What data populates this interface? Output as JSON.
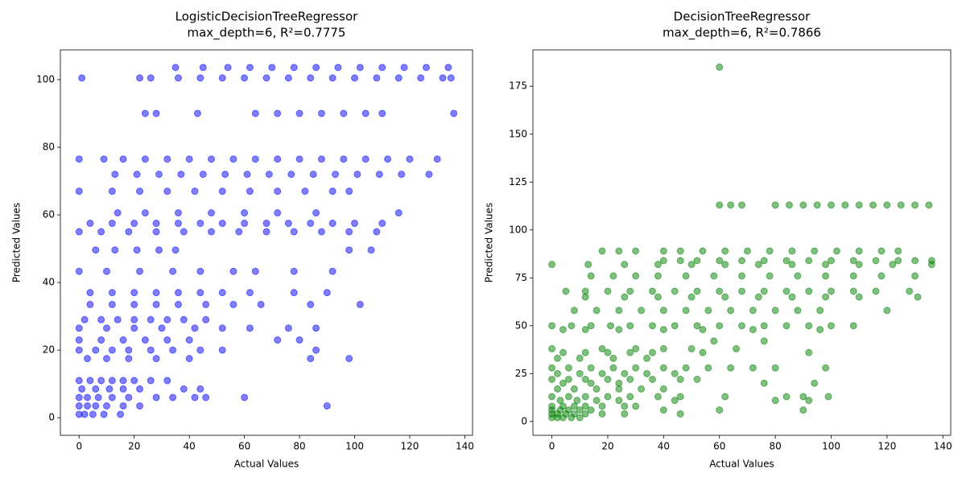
{
  "chart_data": [
    {
      "type": "scatter",
      "title": "LogisticDecisionTreeRegressor",
      "subtitle": "max_depth=6, R²=0.7775",
      "xlabel": "Actual Values",
      "ylabel": "Predicted Values",
      "color": "#0000ff",
      "alpha": 0.5,
      "xlim": [
        -6.8,
        142.8
      ],
      "ylim": [
        -5.2,
        108.8
      ],
      "xticks": [
        0,
        20,
        40,
        60,
        80,
        100,
        120,
        140
      ],
      "yticks": [
        0,
        20,
        40,
        60,
        80,
        100
      ],
      "x": [
        1,
        22,
        26,
        36,
        44,
        52,
        60,
        68,
        76,
        84,
        92,
        100,
        108,
        116,
        124,
        132,
        135,
        35,
        45,
        54,
        62,
        70,
        78,
        86,
        94,
        102,
        110,
        118,
        126,
        134,
        24,
        28,
        43,
        64,
        72,
        80,
        88,
        96,
        104,
        110,
        136,
        0,
        9,
        16,
        24,
        32,
        40,
        48,
        56,
        64,
        72,
        80,
        88,
        96,
        104,
        112,
        120,
        130,
        13,
        21,
        29,
        37,
        45,
        53,
        61,
        69,
        77,
        85,
        93,
        101,
        109,
        117,
        127,
        0,
        12,
        22,
        32,
        42,
        52,
        62,
        72,
        82,
        92,
        98,
        14,
        24,
        36,
        48,
        60,
        72,
        86,
        116,
        4,
        12,
        20,
        28,
        36,
        44,
        52,
        60,
        68,
        76,
        84,
        92,
        100,
        110,
        0,
        8,
        18,
        28,
        38,
        48,
        58,
        68,
        78,
        88,
        98,
        108,
        6,
        13,
        21,
        29,
        35,
        98,
        106,
        0,
        10,
        22,
        34,
        44,
        56,
        64,
        78,
        92,
        4,
        12,
        20,
        28,
        36,
        44,
        52,
        62,
        78,
        90,
        4,
        12,
        20,
        28,
        36,
        46,
        56,
        66,
        84,
        102,
        2,
        8,
        14,
        20,
        26,
        32,
        38,
        46,
        0,
        10,
        20,
        30,
        42,
        52,
        62,
        76,
        86,
        0,
        8,
        16,
        24,
        32,
        40,
        72,
        80,
        0,
        6,
        12,
        18,
        26,
        34,
        44,
        52,
        86,
        3,
        10,
        18,
        28,
        40,
        84,
        98,
        0,
        4,
        8,
        12,
        16,
        20,
        26,
        32,
        1,
        6,
        11,
        16,
        22,
        38,
        44,
        0,
        3,
        7,
        12,
        18,
        28,
        34,
        42,
        46,
        60,
        0,
        3,
        6,
        10,
        16,
        22,
        90,
        0,
        2,
        5,
        9,
        15
      ],
      "y": [
        100.5,
        100.5,
        100.5,
        100.5,
        100.5,
        100.5,
        100.5,
        100.5,
        100.5,
        100.5,
        100.5,
        100.5,
        100.5,
        100.5,
        100.5,
        100.5,
        100.5,
        103.6,
        103.6,
        103.6,
        103.6,
        103.6,
        103.6,
        103.6,
        103.6,
        103.6,
        103.6,
        103.6,
        103.6,
        103.6,
        90,
        90,
        90,
        90,
        90,
        90,
        90,
        90,
        90,
        90,
        90,
        76.5,
        76.5,
        76.5,
        76.5,
        76.5,
        76.5,
        76.5,
        76.5,
        76.5,
        76.5,
        76.5,
        76.5,
        76.5,
        76.5,
        76.5,
        76.5,
        76.5,
        72,
        72,
        72,
        72,
        72,
        72,
        72,
        72,
        72,
        72,
        72,
        72,
        72,
        72,
        72,
        67,
        67,
        67,
        67,
        67,
        67,
        67,
        67,
        67,
        67,
        67,
        60.6,
        60.6,
        60.6,
        60.6,
        60.6,
        60.6,
        60.6,
        60.6,
        57.5,
        57.5,
        57.5,
        57.5,
        57.5,
        57.5,
        57.5,
        57.5,
        57.5,
        57.5,
        57.5,
        57.5,
        57.5,
        57.5,
        55,
        55,
        55,
        55,
        55,
        55,
        55,
        55,
        55,
        55,
        55,
        55,
        49.6,
        49.6,
        49.6,
        49.6,
        49.6,
        49.6,
        49.6,
        43.3,
        43.3,
        43.3,
        43.3,
        43.3,
        43.3,
        43.3,
        43.3,
        43.3,
        37,
        37,
        37,
        37,
        37,
        37,
        37,
        37,
        37,
        37,
        33.5,
        33.5,
        33.5,
        33.5,
        33.5,
        33.5,
        33.5,
        33.5,
        33.5,
        33.5,
        29,
        29,
        29,
        29,
        29,
        29,
        29,
        29,
        26.5,
        26.5,
        26.5,
        26.5,
        26.5,
        26.5,
        26.5,
        26.5,
        26.5,
        23,
        23,
        23,
        23,
        23,
        23,
        23,
        23,
        20,
        20,
        20,
        20,
        20,
        20,
        20,
        20,
        20,
        17.5,
        17.5,
        17.5,
        17.5,
        17.5,
        17.5,
        17.5,
        11,
        11,
        11,
        11,
        11,
        11,
        11,
        11,
        8.5,
        8.5,
        8.5,
        8.5,
        8.5,
        8.5,
        8.5,
        6,
        6,
        6,
        6,
        6,
        6,
        6,
        6,
        6,
        6,
        3.5,
        3.5,
        3.5,
        3.5,
        3.5,
        3.5,
        3.5,
        1,
        1,
        1,
        1,
        1
      ]
    },
    {
      "type": "scatter",
      "title": "DecisionTreeRegressor",
      "subtitle": "max_depth=6, R²=0.7866",
      "xlabel": "Actual Values",
      "ylabel": "Predicted Values",
      "color": "#008000",
      "alpha": 0.5,
      "xlim": [
        -6.8,
        142.8
      ],
      "ylim": [
        -7.2,
        194
      ],
      "xticks": [
        0,
        20,
        40,
        60,
        80,
        100,
        120,
        140
      ],
      "yticks": [
        0,
        25,
        50,
        75,
        100,
        125,
        150,
        175
      ],
      "x": [
        60,
        60,
        64,
        68,
        80,
        85,
        90,
        95,
        100,
        105,
        110,
        115,
        120,
        125,
        130,
        135,
        18,
        24,
        30,
        40,
        46,
        54,
        62,
        70,
        78,
        86,
        94,
        102,
        110,
        118,
        124,
        40,
        46,
        52,
        60,
        68,
        76,
        84,
        92,
        100,
        108,
        116,
        124,
        130,
        136,
        0,
        13,
        26,
        38,
        50,
        62,
        74,
        86,
        98,
        110,
        122,
        136,
        14,
        22,
        30,
        38,
        48,
        58,
        68,
        78,
        88,
        98,
        108,
        118,
        130,
        5,
        12,
        20,
        28,
        36,
        44,
        52,
        60,
        68,
        76,
        84,
        92,
        100,
        108,
        116,
        128,
        12,
        26,
        38,
        50,
        62,
        74,
        86,
        98,
        110,
        131,
        8,
        16,
        24,
        32,
        40,
        48,
        56,
        64,
        72,
        80,
        88,
        96,
        120,
        0,
        7,
        14,
        21,
        28,
        36,
        44,
        52,
        60,
        68,
        76,
        84,
        92,
        100,
        108,
        4,
        12,
        24,
        40,
        54,
        72,
        96,
        58,
        76,
        0,
        18,
        30,
        40,
        50,
        66,
        4,
        12,
        20,
        28,
        36,
        54,
        92,
        2,
        10,
        22,
        34,
        0,
        6,
        14,
        22,
        30,
        40,
        48,
        56,
        64,
        72,
        80,
        98,
        2,
        10,
        18,
        26,
        34,
        44,
        0,
        6,
        12,
        20,
        28,
        36,
        46,
        52,
        4,
        14,
        24,
        76,
        94,
        2,
        8,
        16,
        24,
        32,
        40,
        0,
        6,
        12,
        20,
        28,
        38,
        46,
        62,
        84,
        90,
        99,
        3,
        9,
        16,
        24,
        44,
        80,
        92,
        0,
        4,
        8,
        12,
        18,
        26,
        30,
        0,
        3,
        6,
        10,
        14,
        40,
        60,
        90,
        0,
        2,
        5,
        8,
        12,
        18,
        26,
        46,
        0,
        2,
        4,
        7,
        10
      ],
      "y": [
        185,
        113,
        113,
        113,
        113,
        113,
        113,
        113,
        113,
        113,
        113,
        113,
        113,
        113,
        113,
        113,
        89,
        89,
        89,
        89,
        89,
        89,
        89,
        89,
        89,
        89,
        89,
        89,
        89,
        89,
        89,
        84,
        84,
        84,
        84,
        84,
        84,
        84,
        84,
        84,
        84,
        84,
        84,
        84,
        84,
        82,
        82,
        82,
        82,
        82,
        82,
        82,
        82,
        82,
        82,
        82,
        82,
        76,
        76,
        76,
        76,
        76,
        76,
        76,
        76,
        76,
        76,
        76,
        76,
        76,
        68,
        68,
        68,
        68,
        68,
        68,
        68,
        68,
        68,
        68,
        68,
        68,
        68,
        68,
        68,
        68,
        65,
        65,
        65,
        65,
        65,
        65,
        65,
        65,
        65,
        65,
        58,
        58,
        58,
        58,
        58,
        58,
        58,
        58,
        58,
        58,
        58,
        58,
        58,
        50,
        50,
        50,
        50,
        50,
        50,
        50,
        50,
        50,
        50,
        50,
        50,
        50,
        50,
        50,
        48,
        48,
        48,
        48,
        48,
        48,
        48,
        42,
        42,
        38,
        38,
        38,
        38,
        38,
        38,
        36,
        36,
        36,
        36,
        36,
        36,
        36,
        33,
        33,
        33,
        33,
        28,
        28,
        28,
        28,
        28,
        28,
        28,
        28,
        28,
        28,
        28,
        28,
        25,
        25,
        25,
        25,
        25,
        25,
        22,
        22,
        22,
        22,
        22,
        22,
        22,
        22,
        20,
        20,
        20,
        20,
        20,
        17,
        17,
        17,
        17,
        17,
        17,
        13,
        13,
        13,
        13,
        13,
        13,
        13,
        13,
        13,
        13,
        13,
        11,
        11,
        11,
        11,
        11,
        11,
        11,
        8,
        8,
        8,
        8,
        8,
        8,
        8,
        6,
        6,
        6,
        6,
        6,
        6,
        6,
        6,
        4,
        4,
        4,
        4,
        4,
        4,
        4,
        4,
        2,
        2,
        2,
        2,
        2
      ]
    }
  ]
}
